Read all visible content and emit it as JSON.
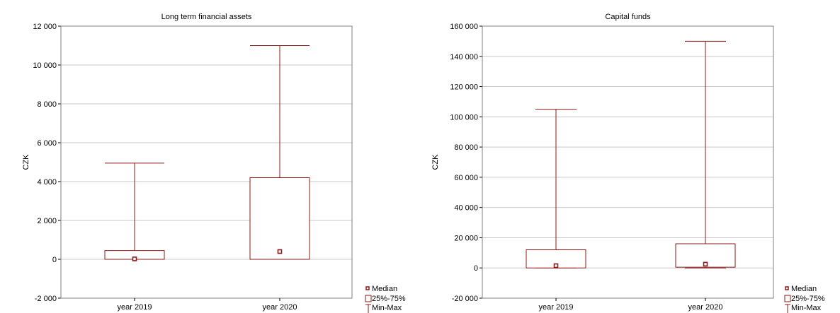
{
  "colors": {
    "box": "#8b1a1a",
    "grid": "#c8c8c8",
    "frame": "#7f7f7f"
  },
  "legend": {
    "median": "Median",
    "iqr": "25%-75%",
    "range": "Min-Max"
  },
  "chart_data": [
    {
      "type": "boxplot",
      "title": "Long term financial assets",
      "ylabel": "CZK",
      "ylim": [
        -2000,
        12000
      ],
      "yticks": [
        -2000,
        0,
        2000,
        4000,
        6000,
        8000,
        10000,
        12000
      ],
      "ytick_labels": [
        "-2 000",
        "0",
        "2 000",
        "4 000",
        "6 000",
        "8 000",
        "10 000",
        "12 000"
      ],
      "categories": [
        "year 2019",
        "year 2020"
      ],
      "boxes": [
        {
          "min": 0,
          "q1": 0,
          "median": 20,
          "q3": 450,
          "max": 4950
        },
        {
          "min": 0,
          "q1": 0,
          "median": 400,
          "q3": 4200,
          "max": 11000
        }
      ],
      "grid": true,
      "legend_position": "bottom-right"
    },
    {
      "type": "boxplot",
      "title": "Capital funds",
      "ylabel": "CZK",
      "ylim": [
        -20000,
        160000
      ],
      "yticks": [
        -20000,
        0,
        20000,
        40000,
        60000,
        80000,
        100000,
        120000,
        140000,
        160000
      ],
      "ytick_labels": [
        "-20 000",
        "0",
        "20 000",
        "40 000",
        "60 000",
        "80 000",
        "100 000",
        "120 000",
        "140 000",
        "160 000"
      ],
      "categories": [
        "year 2019",
        "year 2020"
      ],
      "boxes": [
        {
          "min": 0,
          "q1": 0,
          "median": 1500,
          "q3": 12000,
          "max": 105000
        },
        {
          "min": 0,
          "q1": 500,
          "median": 2500,
          "q3": 16000,
          "max": 150000
        }
      ],
      "grid": true,
      "legend_position": "bottom-right"
    }
  ]
}
